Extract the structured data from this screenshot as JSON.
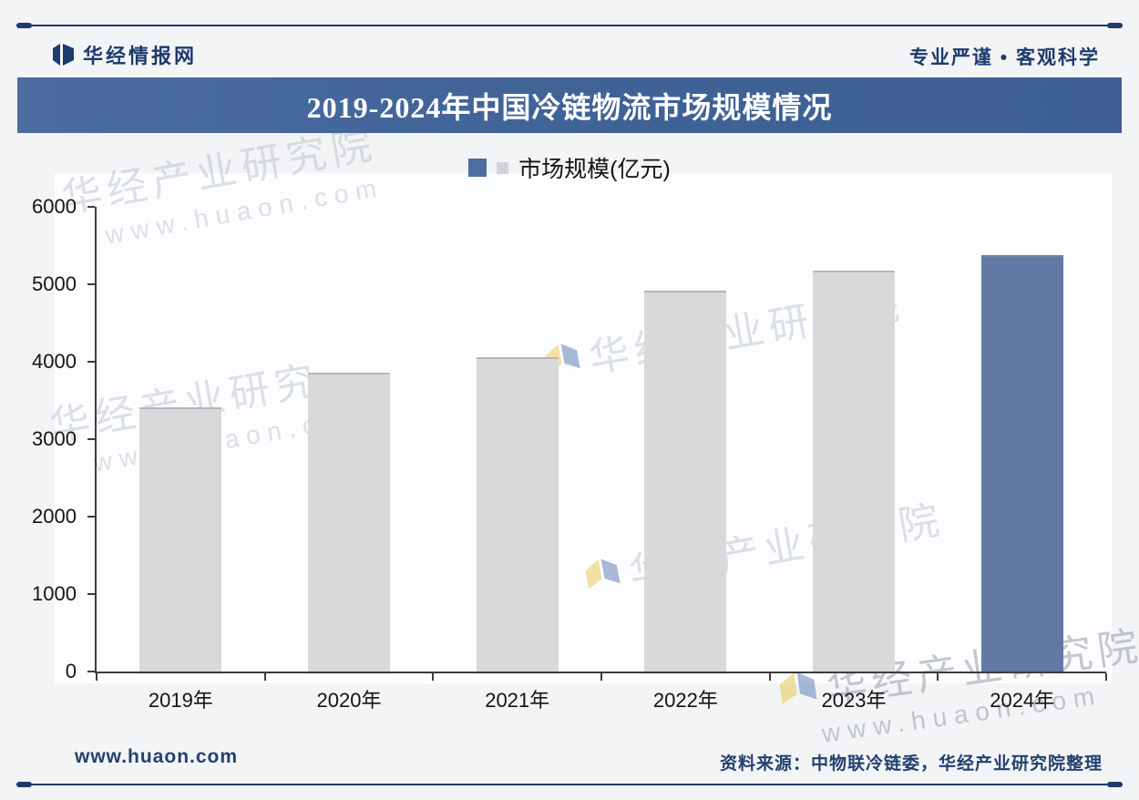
{
  "header": {
    "brand": "华经情报网",
    "slogan": "专业严谨 • 客观科学"
  },
  "title": "2019-2024年中国冷链物流市场规模情况",
  "legend": {
    "label": "市场规模(亿元)"
  },
  "chart_data": {
    "type": "bar",
    "title": "2019-2024年中国冷链物流市场规模情况",
    "categories": [
      "2019年",
      "2020年",
      "2021年",
      "2022年",
      "2023年",
      "2024年"
    ],
    "values": [
      3390,
      3830,
      4030,
      4900,
      5150,
      5350
    ],
    "series_name": "市场规模(亿元)",
    "unit": "亿元",
    "ylim": [
      0,
      6000
    ],
    "yticks": [
      0,
      1000,
      2000,
      3000,
      4000,
      5000,
      6000
    ],
    "bar_colors": [
      "#d8d9db",
      "#d8d9db",
      "#d8d9db",
      "#d8d9db",
      "#d8d9db",
      "#6179a3"
    ],
    "grid": false,
    "legend_position": "top"
  },
  "watermark": {
    "text": "华经产业研究院",
    "text_short": "华经产业研究",
    "url": "www.huaon.com"
  },
  "footer": {
    "site": "www.huaon.com",
    "source": "资料来源：中物联冷链委，华经产业研究院整理"
  },
  "colors": {
    "navy": "#1e3b6e",
    "banner_blue": "#3f6296",
    "bar_gray": "#d8d9db",
    "bar_blue": "#6179a3",
    "legend_blue": "#4d6f9f"
  }
}
